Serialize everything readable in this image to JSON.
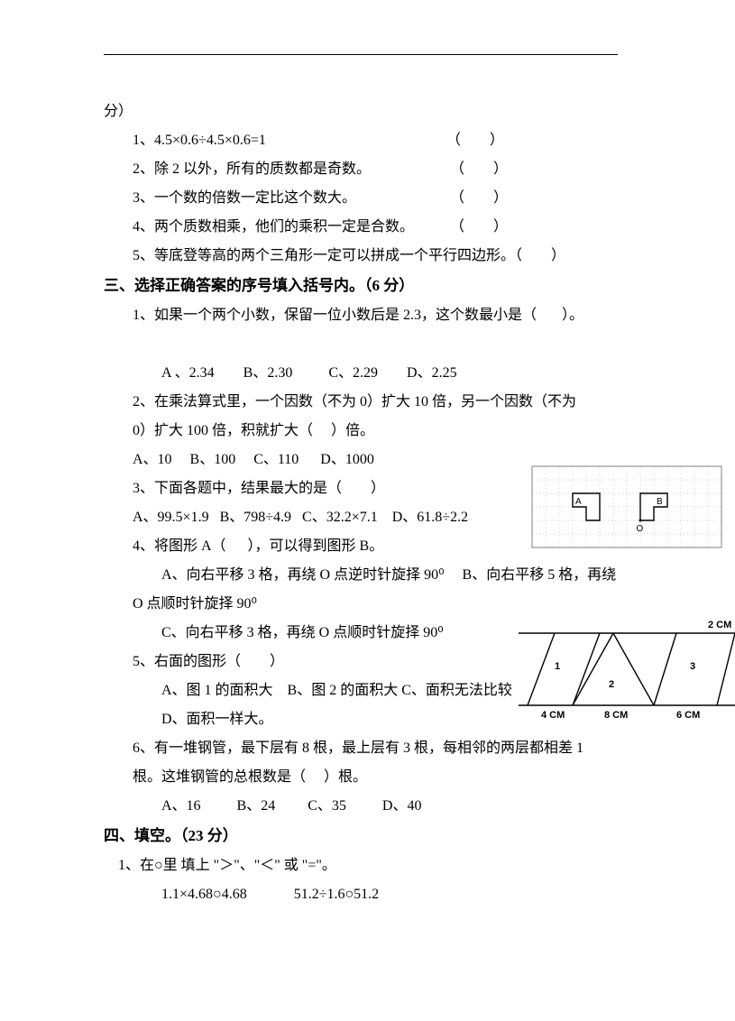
{
  "header": {
    "fen": "分）"
  },
  "sec2": {
    "items": [
      {
        "no": "1、",
        "text": "4.5×0.6÷4.5×0.6=1",
        "paren": "（        ）"
      },
      {
        "no": "2、",
        "text": "除 2 以外，所有的质数都是奇数。",
        "paren": "（        ）"
      },
      {
        "no": "3、",
        "text": "一个数的倍数一定比这个数大。",
        "paren": "（        ）"
      },
      {
        "no": "4、",
        "text": "两个质数相乘，他们的乘积一定是合数。",
        "paren": "（        ）"
      },
      {
        "no": "5、",
        "text": "等底登等高的两个三角形一定可以拼成一个平行四边形。",
        "paren": "（        ）"
      }
    ]
  },
  "sec3": {
    "title": "三、选择正确答案的序号填入括号内。（6 分）",
    "q1": {
      "stem": "1、如果一个两个小数，保留一位小数后是 2.3，这个数最小是（       ）。",
      "opts": "A 、2.34        B、2.30          C、2.29        D、2.25"
    },
    "q2": {
      "l1": "2、在乘法算式里，一个因数（不为 0）扩大 10 倍，另一个因数（不为",
      "l2": "0）扩大 100 倍，积就扩大（     ）倍。",
      "opts": "A、10     B、100     C、110      D、1000"
    },
    "q3": {
      "stem": "3、下面各题中，结果最大的是（        ）",
      "opts": "A、99.5×1.9   B、798÷4.9   C、32.2×7.1    D、61.8÷2.2"
    },
    "q4": {
      "stem": "4、将图形 A（      ），可以得到图形 B。",
      "optA": "A、向右平移 3 格，再绕 O 点逆时针旋择 90⁰     B、向右平移 5 格，再绕",
      "optA2": "O 点顺时针旋择 90⁰",
      "optC": "C、向右平移 3 格，再绕 O 点顺时针旋择 90⁰"
    },
    "q5": {
      "stem": "5、右面的图形（        ）",
      "optsL1": "A、图 1 的面积大    B、图 2 的面积大 C、面积无法比较",
      "optsL2": "D、面积一样大。"
    },
    "q6": {
      "l1": "6、有一堆钢管，最下层有 8 根，最上层有 3 根，每相邻的两层都相差 1",
      "l2": "根。这堆钢管的总根数是（     ）根。",
      "opts": "A、16          B、24         C、35          D、40"
    }
  },
  "sec4": {
    "title": "四、填空。（23 分）",
    "q1": {
      "stem": "1、在○里 填上 \"＞\"、\"＜\" 或 \"=\"。",
      "line": "1.1×4.68○4.68             51.2÷1.6○51.2"
    }
  },
  "grid": {
    "bg": "#ffffff",
    "grid_color": "#bfbfbf",
    "border_color": "#808080",
    "shape_color": "#000000",
    "cell": 15,
    "cols": 14,
    "rows": 6,
    "labelA": "A",
    "labelB": "B",
    "labelO": "O",
    "label_fontsize": 10
  },
  "tri": {
    "stroke": "#000000",
    "label_fontsize": 11,
    "top_label": "2 CM",
    "b1": "4 CM",
    "b2": "8 CM",
    "b3": "6 CM",
    "n1": "1",
    "n2": "2",
    "n3": "3"
  }
}
